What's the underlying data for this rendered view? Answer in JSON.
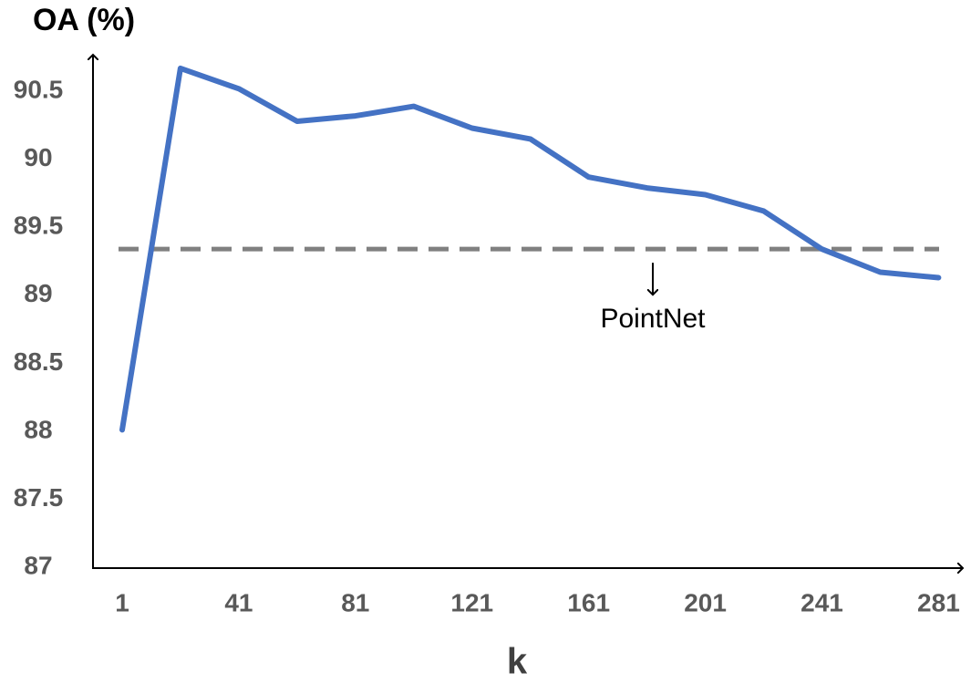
{
  "chart_data": {
    "type": "line",
    "title": "OA (%)",
    "x_label": "k",
    "x": [
      1,
      21,
      41,
      61,
      81,
      101,
      121,
      141,
      161,
      181,
      201,
      221,
      241,
      261,
      281
    ],
    "values": [
      88.01,
      90.67,
      90.52,
      90.28,
      90.32,
      90.39,
      90.23,
      90.15,
      89.87,
      89.79,
      89.74,
      89.62,
      89.34,
      89.17,
      89.13
    ],
    "color": "#4472c4",
    "reference": {
      "name": "PointNet",
      "value": 89.34,
      "color": "#808080"
    },
    "xlim": [
      -9,
      289
    ],
    "xticks": [
      1,
      41,
      81,
      121,
      161,
      201,
      241,
      281
    ],
    "ylim": [
      87,
      90.77
    ],
    "yticks": [
      87,
      87.5,
      88,
      88.5,
      89,
      89.5,
      90,
      90.5
    ],
    "grid": false
  }
}
